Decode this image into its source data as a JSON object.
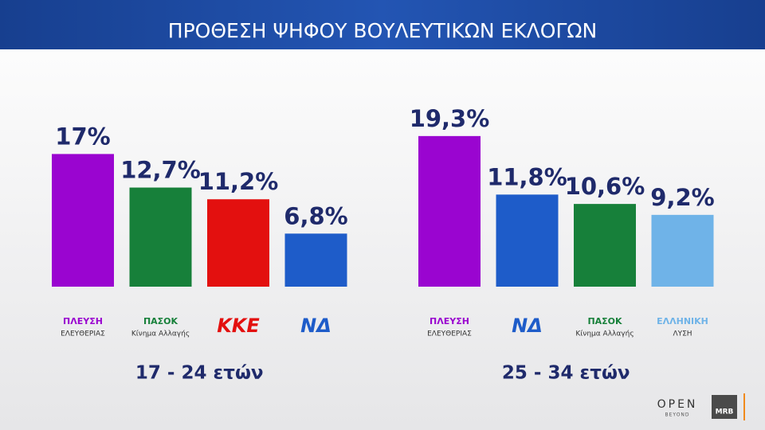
{
  "title": "ΠΡΟΘΕΣΗ ΨΗΦΟΥ ΒΟΥΛΕΥΤΙΚΩΝ ΕΚΛΟΓΩΝ",
  "chart_data": [
    {
      "type": "bar",
      "subtitle": "17 - 24 ετών",
      "categories": [
        "ΠΛΕΥΣΗ",
        "ΠΑΣΟΚ",
        "ΚΚΕ",
        "ΝΔ"
      ],
      "category_sublabels": [
        "ΕΛΕΥΘΕΡΙΑΣ",
        "Κίνημα Αλλαγής",
        null,
        null
      ],
      "values": [
        17,
        12.7,
        11.2,
        6.8
      ],
      "value_labels": [
        "17%",
        "12,7%",
        "11,2%",
        "6,8%"
      ],
      "colors": [
        "#9a05d0",
        "#17803a",
        "#e3100f",
        "#1e5cc9"
      ]
    },
    {
      "type": "bar",
      "subtitle": "25 - 34 ετών",
      "categories": [
        "ΠΛΕΥΣΗ",
        "ΝΔ",
        "ΠΑΣΟΚ",
        "ΕΛΛΗΝΙΚΗ"
      ],
      "category_sublabels": [
        "ΕΛΕΥΘΕΡΙΑΣ",
        null,
        "Κίνημα Αλλαγής",
        "ΛΥΣΗ"
      ],
      "values": [
        19.3,
        11.8,
        10.6,
        9.2
      ],
      "value_labels": [
        "19,3%",
        "11,8%",
        "10,6%",
        "9,2%"
      ],
      "colors": [
        "#9a05d0",
        "#1e5cc9",
        "#17803a",
        "#6fb3e8"
      ]
    }
  ],
  "footer": {
    "brand": "OPEN",
    "brand_sub": "BEYOND",
    "pollster": "MRB"
  }
}
